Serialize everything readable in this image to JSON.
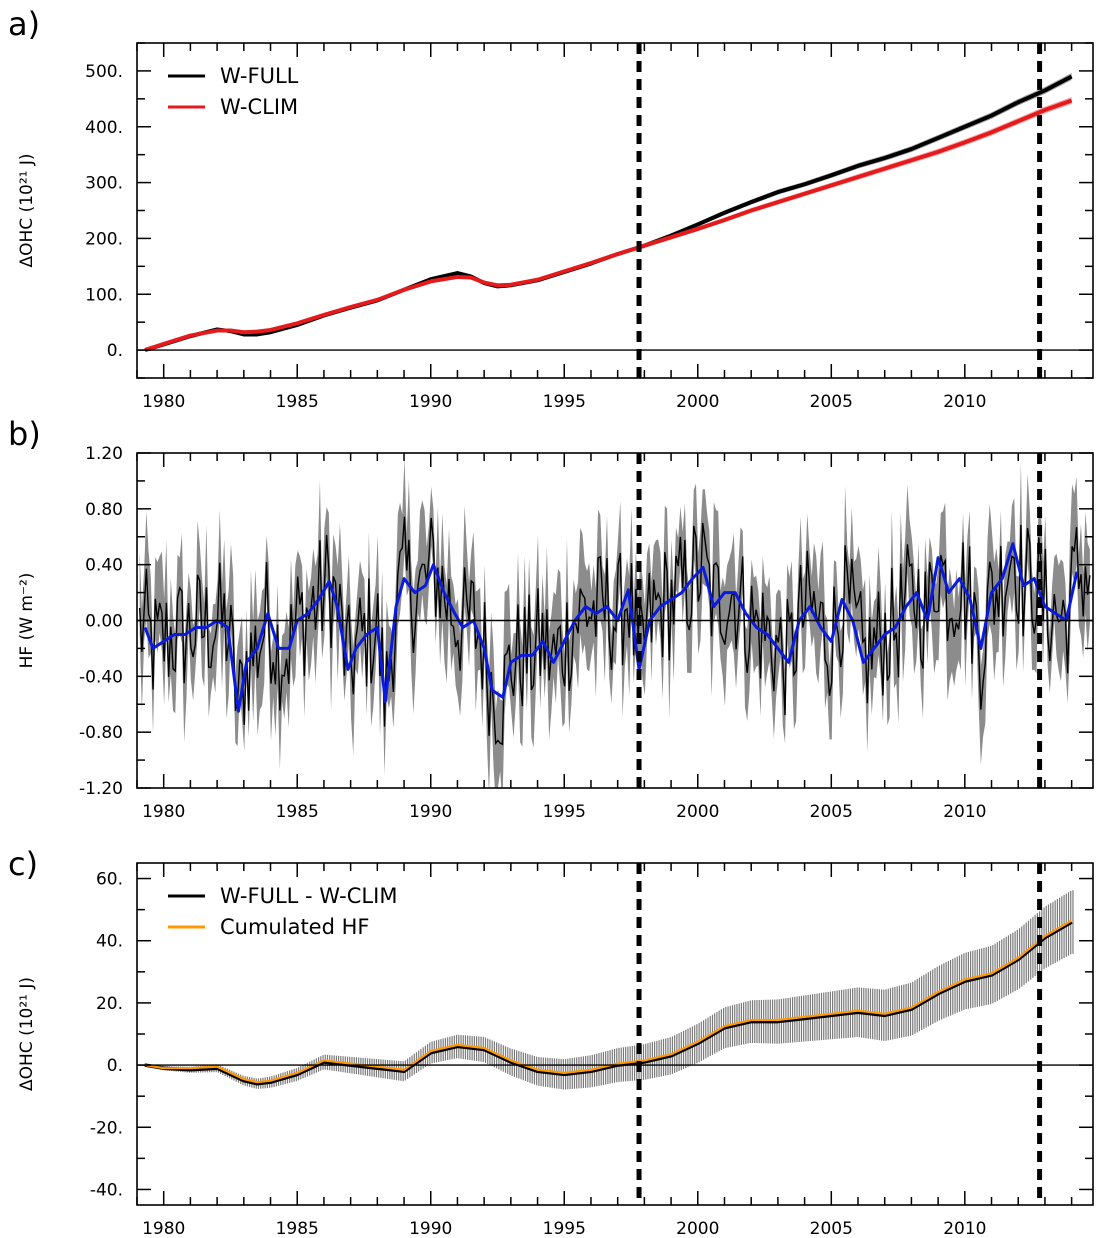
{
  "chart_data": [
    {
      "panel": "a)",
      "type": "line",
      "xlim": [
        1979,
        2014.8
      ],
      "ylim": [
        -50,
        550
      ],
      "x_ticks": [
        "1980",
        "1985",
        "1990",
        "1995",
        "2000",
        "2005",
        "2010"
      ],
      "y_ticks": [
        "0.",
        "100.",
        "200.",
        "300.",
        "400.",
        "500."
      ],
      "ylabel": "ΔOHC (10²¹ J)",
      "legend": {
        "position": "top-left",
        "entries": [
          "W-FULL",
          "W-CLIM"
        ]
      },
      "zero_line": true,
      "vlines": [
        1997.8,
        2012.8
      ],
      "series": [
        {
          "name": "W-FULL",
          "color": "#000000",
          "x": [
            1979.3,
            1980,
            1981,
            1982,
            1982.5,
            1983,
            1983.5,
            1984,
            1985,
            1986,
            1987,
            1988,
            1989,
            1990,
            1991,
            1991.5,
            1992,
            1992.5,
            1993,
            1994,
            1995,
            1996,
            1997,
            1998,
            1999,
            2000,
            2001,
            2002,
            2003,
            2004,
            2005,
            2006,
            2007,
            2008,
            2009,
            2010,
            2011,
            2012,
            2013,
            2014
          ],
          "y": [
            0,
            10,
            25,
            37,
            34,
            28,
            28,
            32,
            45,
            62,
            76,
            89,
            108,
            127,
            138,
            132,
            120,
            114,
            116,
            125,
            140,
            155,
            172,
            187,
            205,
            225,
            246,
            265,
            283,
            297,
            313,
            330,
            344,
            360,
            380,
            400,
            420,
            444,
            465,
            490
          ]
        },
        {
          "name": "W-CLIM",
          "color": "#e41a1c",
          "x": [
            1979.3,
            1980,
            1981,
            1982,
            1982.5,
            1983,
            1983.5,
            1984,
            1985,
            1986,
            1987,
            1988,
            1989,
            1990,
            1991,
            1991.5,
            1992,
            1992.5,
            1993,
            1994,
            1995,
            1996,
            1997,
            1998,
            1999,
            2000,
            2001,
            2002,
            2003,
            2004,
            2005,
            2006,
            2007,
            2008,
            2009,
            2010,
            2011,
            2012,
            2013,
            2014
          ],
          "y": [
            0,
            11,
            26,
            35,
            35,
            32,
            33,
            36,
            48,
            63,
            77,
            90,
            108,
            123,
            131,
            130,
            121,
            116,
            117,
            126,
            141,
            156,
            172,
            187,
            202,
            217,
            233,
            250,
            265,
            280,
            295,
            310,
            325,
            340,
            355,
            372,
            390,
            410,
            430,
            447
          ]
        }
      ]
    },
    {
      "panel": "b)",
      "type": "line",
      "xlim": [
        1979,
        2014.8
      ],
      "ylim": [
        -1.2,
        1.2
      ],
      "x_ticks": [
        "1980",
        "1985",
        "1990",
        "1995",
        "2000",
        "2005",
        "2010"
      ],
      "y_ticks": [
        "-1.20",
        "-0.80",
        "-0.40",
        "0.00",
        "0.40",
        "0.80",
        "1.20"
      ],
      "ylabel": "HF (W m⁻²)",
      "zero_line": true,
      "vlines": [
        1997.8,
        2012.8
      ],
      "series": [
        {
          "name": "",
          "color": "#0a1bdc",
          "x": [
            1979.3,
            1979.6,
            1980,
            1980.4,
            1980.8,
            1981.2,
            1981.6,
            1982,
            1982.4,
            1982.8,
            1983.1,
            1983.5,
            1983.9,
            1984.3,
            1984.7,
            1985,
            1985.4,
            1985.8,
            1986.2,
            1986.5,
            1986.9,
            1987.2,
            1987.6,
            1988,
            1988.3,
            1988.7,
            1989,
            1989.4,
            1989.8,
            1990.1,
            1990.5,
            1990.9,
            1991.2,
            1991.6,
            1992,
            1992.3,
            1992.7,
            1993,
            1993.4,
            1993.8,
            1994.2,
            1994.6,
            1995,
            1995.4,
            1995.8,
            1996.2,
            1996.6,
            1997,
            1997.4,
            1997.8,
            1998.2,
            1998.6,
            1999,
            1999.4,
            1999.8,
            2000.2,
            2000.6,
            2001,
            2001.4,
            2001.8,
            2002.2,
            2002.6,
            2003,
            2003.4,
            2003.8,
            2004.2,
            2004.6,
            2005,
            2005.4,
            2005.8,
            2006.2,
            2006.6,
            2007,
            2007.4,
            2007.8,
            2008.2,
            2008.6,
            2009,
            2009.4,
            2009.8,
            2010.2,
            2010.6,
            2011,
            2011.4,
            2011.8,
            2012.2,
            2012.6,
            2013,
            2013.4,
            2013.8,
            2014.2
          ],
          "y": [
            -0.05,
            -0.2,
            -0.15,
            -0.1,
            -0.1,
            -0.05,
            -0.05,
            0.0,
            -0.05,
            -0.65,
            -0.3,
            -0.2,
            0.05,
            -0.2,
            -0.2,
            0.0,
            0.05,
            0.15,
            0.28,
            0.1,
            -0.35,
            -0.2,
            -0.1,
            -0.05,
            -0.58,
            0.1,
            0.3,
            0.2,
            0.25,
            0.4,
            0.2,
            0.05,
            -0.05,
            0.0,
            -0.2,
            -0.5,
            -0.55,
            -0.3,
            -0.25,
            -0.25,
            -0.15,
            -0.3,
            -0.15,
            0.0,
            0.1,
            0.05,
            0.1,
            0.0,
            0.22,
            -0.35,
            0.0,
            0.1,
            0.15,
            0.2,
            0.3,
            0.38,
            0.1,
            0.2,
            0.2,
            0.05,
            -0.05,
            -0.1,
            -0.2,
            -0.3,
            0.0,
            0.1,
            -0.05,
            -0.15,
            0.15,
            0.0,
            -0.3,
            -0.2,
            -0.1,
            -0.05,
            0.1,
            0.2,
            0.0,
            0.45,
            0.2,
            0.3,
            0.15,
            -0.2,
            0.2,
            0.3,
            0.55,
            0.25,
            0.3,
            0.1,
            0.05,
            0.0,
            0.35
          ]
        }
      ]
    },
    {
      "panel": "c)",
      "type": "line",
      "xlim": [
        1979,
        2014.8
      ],
      "ylim": [
        -45,
        65
      ],
      "x_ticks": [
        "1980",
        "1985",
        "1990",
        "1995",
        "2000",
        "2005",
        "2010"
      ],
      "y_ticks": [
        "-40.",
        "-20.",
        "0.",
        "20.",
        "40.",
        "60."
      ],
      "ylabel": "ΔOHC (10²¹ J)",
      "legend": {
        "position": "top-left",
        "entries": [
          "W-FULL - W-CLIM",
          "Cumulated HF"
        ]
      },
      "zero_line": true,
      "vlines": [
        1997.8,
        2012.8
      ],
      "series": [
        {
          "name": "W-FULL - W-CLIM",
          "color": "#000000",
          "x": [
            1979.3,
            1980,
            1981,
            1982,
            1983,
            1983.5,
            1984,
            1985,
            1986,
            1987,
            1988,
            1989,
            1990,
            1991,
            1992,
            1993,
            1994,
            1995,
            1996,
            1997,
            1998,
            1999,
            2000,
            2001,
            2002,
            2003,
            2004,
            2005,
            2006,
            2007,
            2008,
            2009,
            2010,
            2011,
            2012,
            2013,
            2014
          ],
          "y": [
            0,
            -1,
            -1.5,
            -1,
            -5,
            -6,
            -5.5,
            -3,
            1,
            0,
            -1,
            -2,
            4,
            6,
            5,
            1,
            -2,
            -3,
            -2,
            0,
            1,
            3,
            7,
            12,
            14,
            14,
            15,
            16,
            17,
            16,
            18,
            23,
            27,
            29,
            34,
            41,
            46
          ]
        },
        {
          "name": "Cumulated HF",
          "color": "#ff9900",
          "x": [
            1979.3,
            1980,
            1981,
            1982,
            1983,
            1983.5,
            1984,
            1985,
            1986,
            1987,
            1988,
            1989,
            1990,
            1991,
            1992,
            1993,
            1994,
            1995,
            1996,
            1997,
            1998,
            1999,
            2000,
            2001,
            2002,
            2003,
            2004,
            2005,
            2006,
            2007,
            2008,
            2009,
            2010,
            2011,
            2012,
            2013,
            2014
          ],
          "y": [
            0,
            -1,
            -1,
            -0.5,
            -4.5,
            -5.5,
            -5,
            -2.5,
            1.5,
            0.5,
            -0.5,
            -1.5,
            4.5,
            6.5,
            5.5,
            1.5,
            -1.5,
            -2.5,
            -1.5,
            0.5,
            1.5,
            3.5,
            7.5,
            12.5,
            14.5,
            14.5,
            15.5,
            16.5,
            17.5,
            16.5,
            18.5,
            23.5,
            27.5,
            29.5,
            34.5,
            41.5,
            46.5
          ]
        }
      ]
    }
  ]
}
